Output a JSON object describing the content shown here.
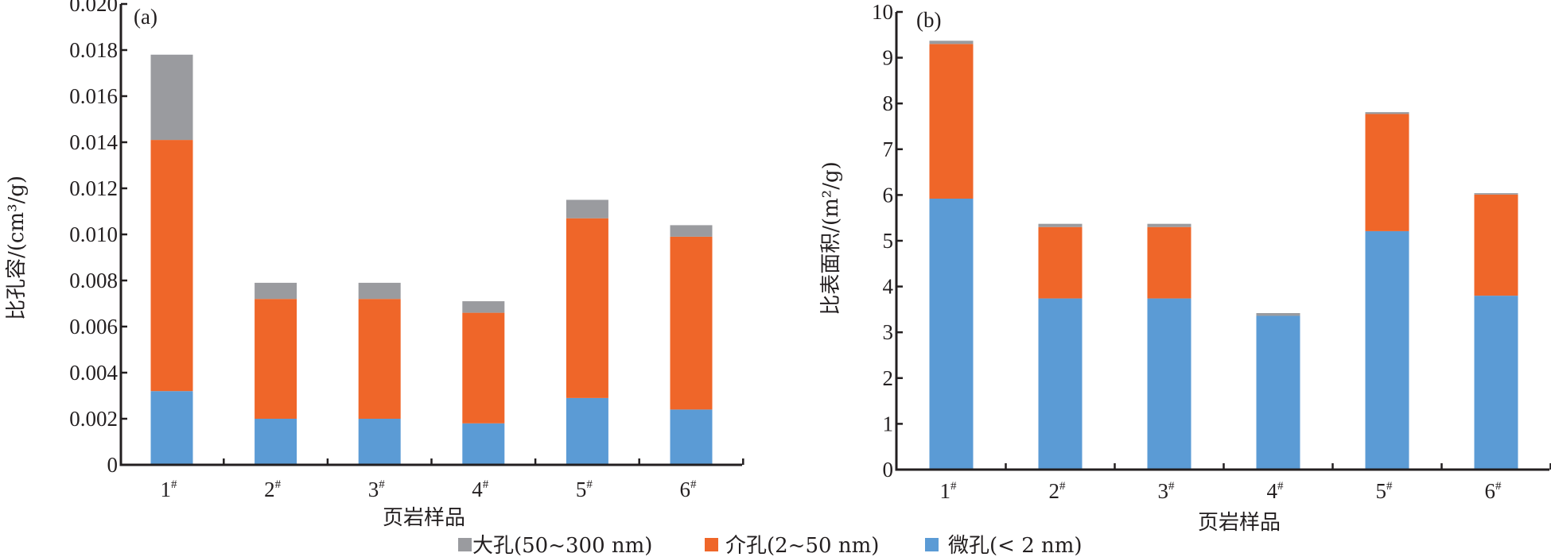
{
  "legend": [
    {
      "key": "macro",
      "label": "大孔(50~300 nm)",
      "color": "#9a9b9f"
    },
    {
      "key": "meso",
      "label": "介孔(2~50 nm)",
      "color": "#ef6629"
    },
    {
      "key": "micro",
      "label": "微孔(< 2 nm)",
      "color": "#5b9bd5"
    }
  ],
  "chart_data": [
    {
      "type": "bar",
      "stacked": true,
      "panel": "(a)",
      "title": "",
      "xlabel": "页岩样品",
      "ylabel": "比孔容/(cm³/g)",
      "categories": [
        "1#",
        "2#",
        "3#",
        "4#",
        "5#",
        "6#"
      ],
      "ylim": [
        0,
        0.02
      ],
      "yticks": [
        "0",
        "0.002",
        "0.004",
        "0.006",
        "0.008",
        "0.010",
        "0.012",
        "0.014",
        "0.016",
        "0.018",
        "0.020"
      ],
      "grid": false,
      "legend_position": "bottom-center",
      "series": [
        {
          "name": "微孔(< 2 nm)",
          "key": "micro",
          "values": [
            0.0032,
            0.002,
            0.002,
            0.0018,
            0.0029,
            0.0024
          ]
        },
        {
          "name": "介孔(2~50 nm)",
          "key": "meso",
          "values": [
            0.0109,
            0.0052,
            0.0052,
            0.0048,
            0.0078,
            0.0075
          ]
        },
        {
          "name": "大孔(50~300 nm)",
          "key": "macro",
          "values": [
            0.0037,
            0.0007,
            0.0007,
            0.0005,
            0.0008,
            0.0005
          ]
        }
      ]
    },
    {
      "type": "bar",
      "stacked": true,
      "panel": "(b)",
      "title": "",
      "xlabel": "页岩样品",
      "ylabel": "比表面积/(m²/g)",
      "categories": [
        "1#",
        "2#",
        "3#",
        "4#",
        "5#",
        "6#"
      ],
      "ylim": [
        0,
        10
      ],
      "yticks": [
        "0",
        "1",
        "2",
        "3",
        "4",
        "5",
        "6",
        "7",
        "8",
        "9",
        "10"
      ],
      "grid": false,
      "legend_position": "bottom-center",
      "series": [
        {
          "name": "微孔(< 2 nm)",
          "key": "micro",
          "values": [
            5.92,
            3.74,
            3.74,
            3.36,
            5.21,
            3.8
          ]
        },
        {
          "name": "介孔(2~50 nm)",
          "key": "meso",
          "values": [
            3.38,
            1.56,
            1.56,
            0.0,
            2.56,
            2.21
          ]
        },
        {
          "name": "大孔(50~300 nm)",
          "key": "macro",
          "values": [
            0.07,
            0.07,
            0.07,
            0.06,
            0.04,
            0.03
          ]
        }
      ]
    }
  ]
}
